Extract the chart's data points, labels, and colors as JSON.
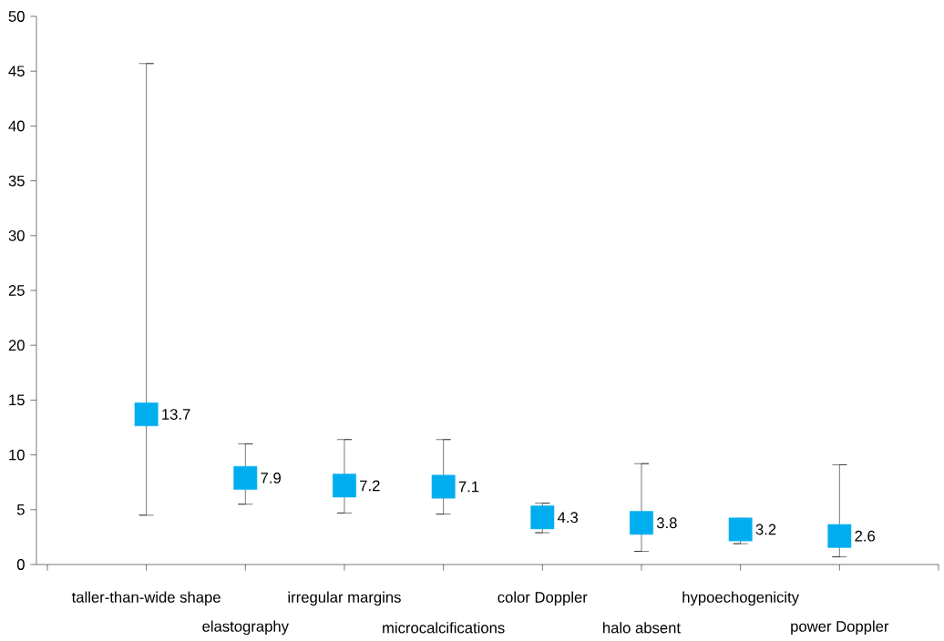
{
  "chart_data": {
    "type": "scatter",
    "categories": [
      "taller-than-wide shape",
      "elastography",
      "irregular margins",
      "microcalcifications",
      "color Doppler",
      "halo absent",
      "hypoechogenicity",
      "power Doppler"
    ],
    "values": [
      13.7,
      7.9,
      7.2,
      7.1,
      4.3,
      3.8,
      3.2,
      2.6
    ],
    "errors": [
      [
        4.5,
        45.7
      ],
      [
        5.5,
        11.0
      ],
      [
        4.7,
        11.4
      ],
      [
        4.6,
        11.4
      ],
      [
        2.9,
        5.6
      ],
      [
        1.2,
        9.2
      ],
      [
        1.9,
        4.2
      ],
      [
        0.7,
        9.1
      ]
    ],
    "color": "#00aeef",
    "marker": "square",
    "data_labels": true,
    "grid": false,
    "ylim": [
      0,
      50
    ],
    "yticks": [
      0,
      5,
      10,
      15,
      20,
      25,
      30,
      35,
      40,
      45,
      50
    ]
  }
}
